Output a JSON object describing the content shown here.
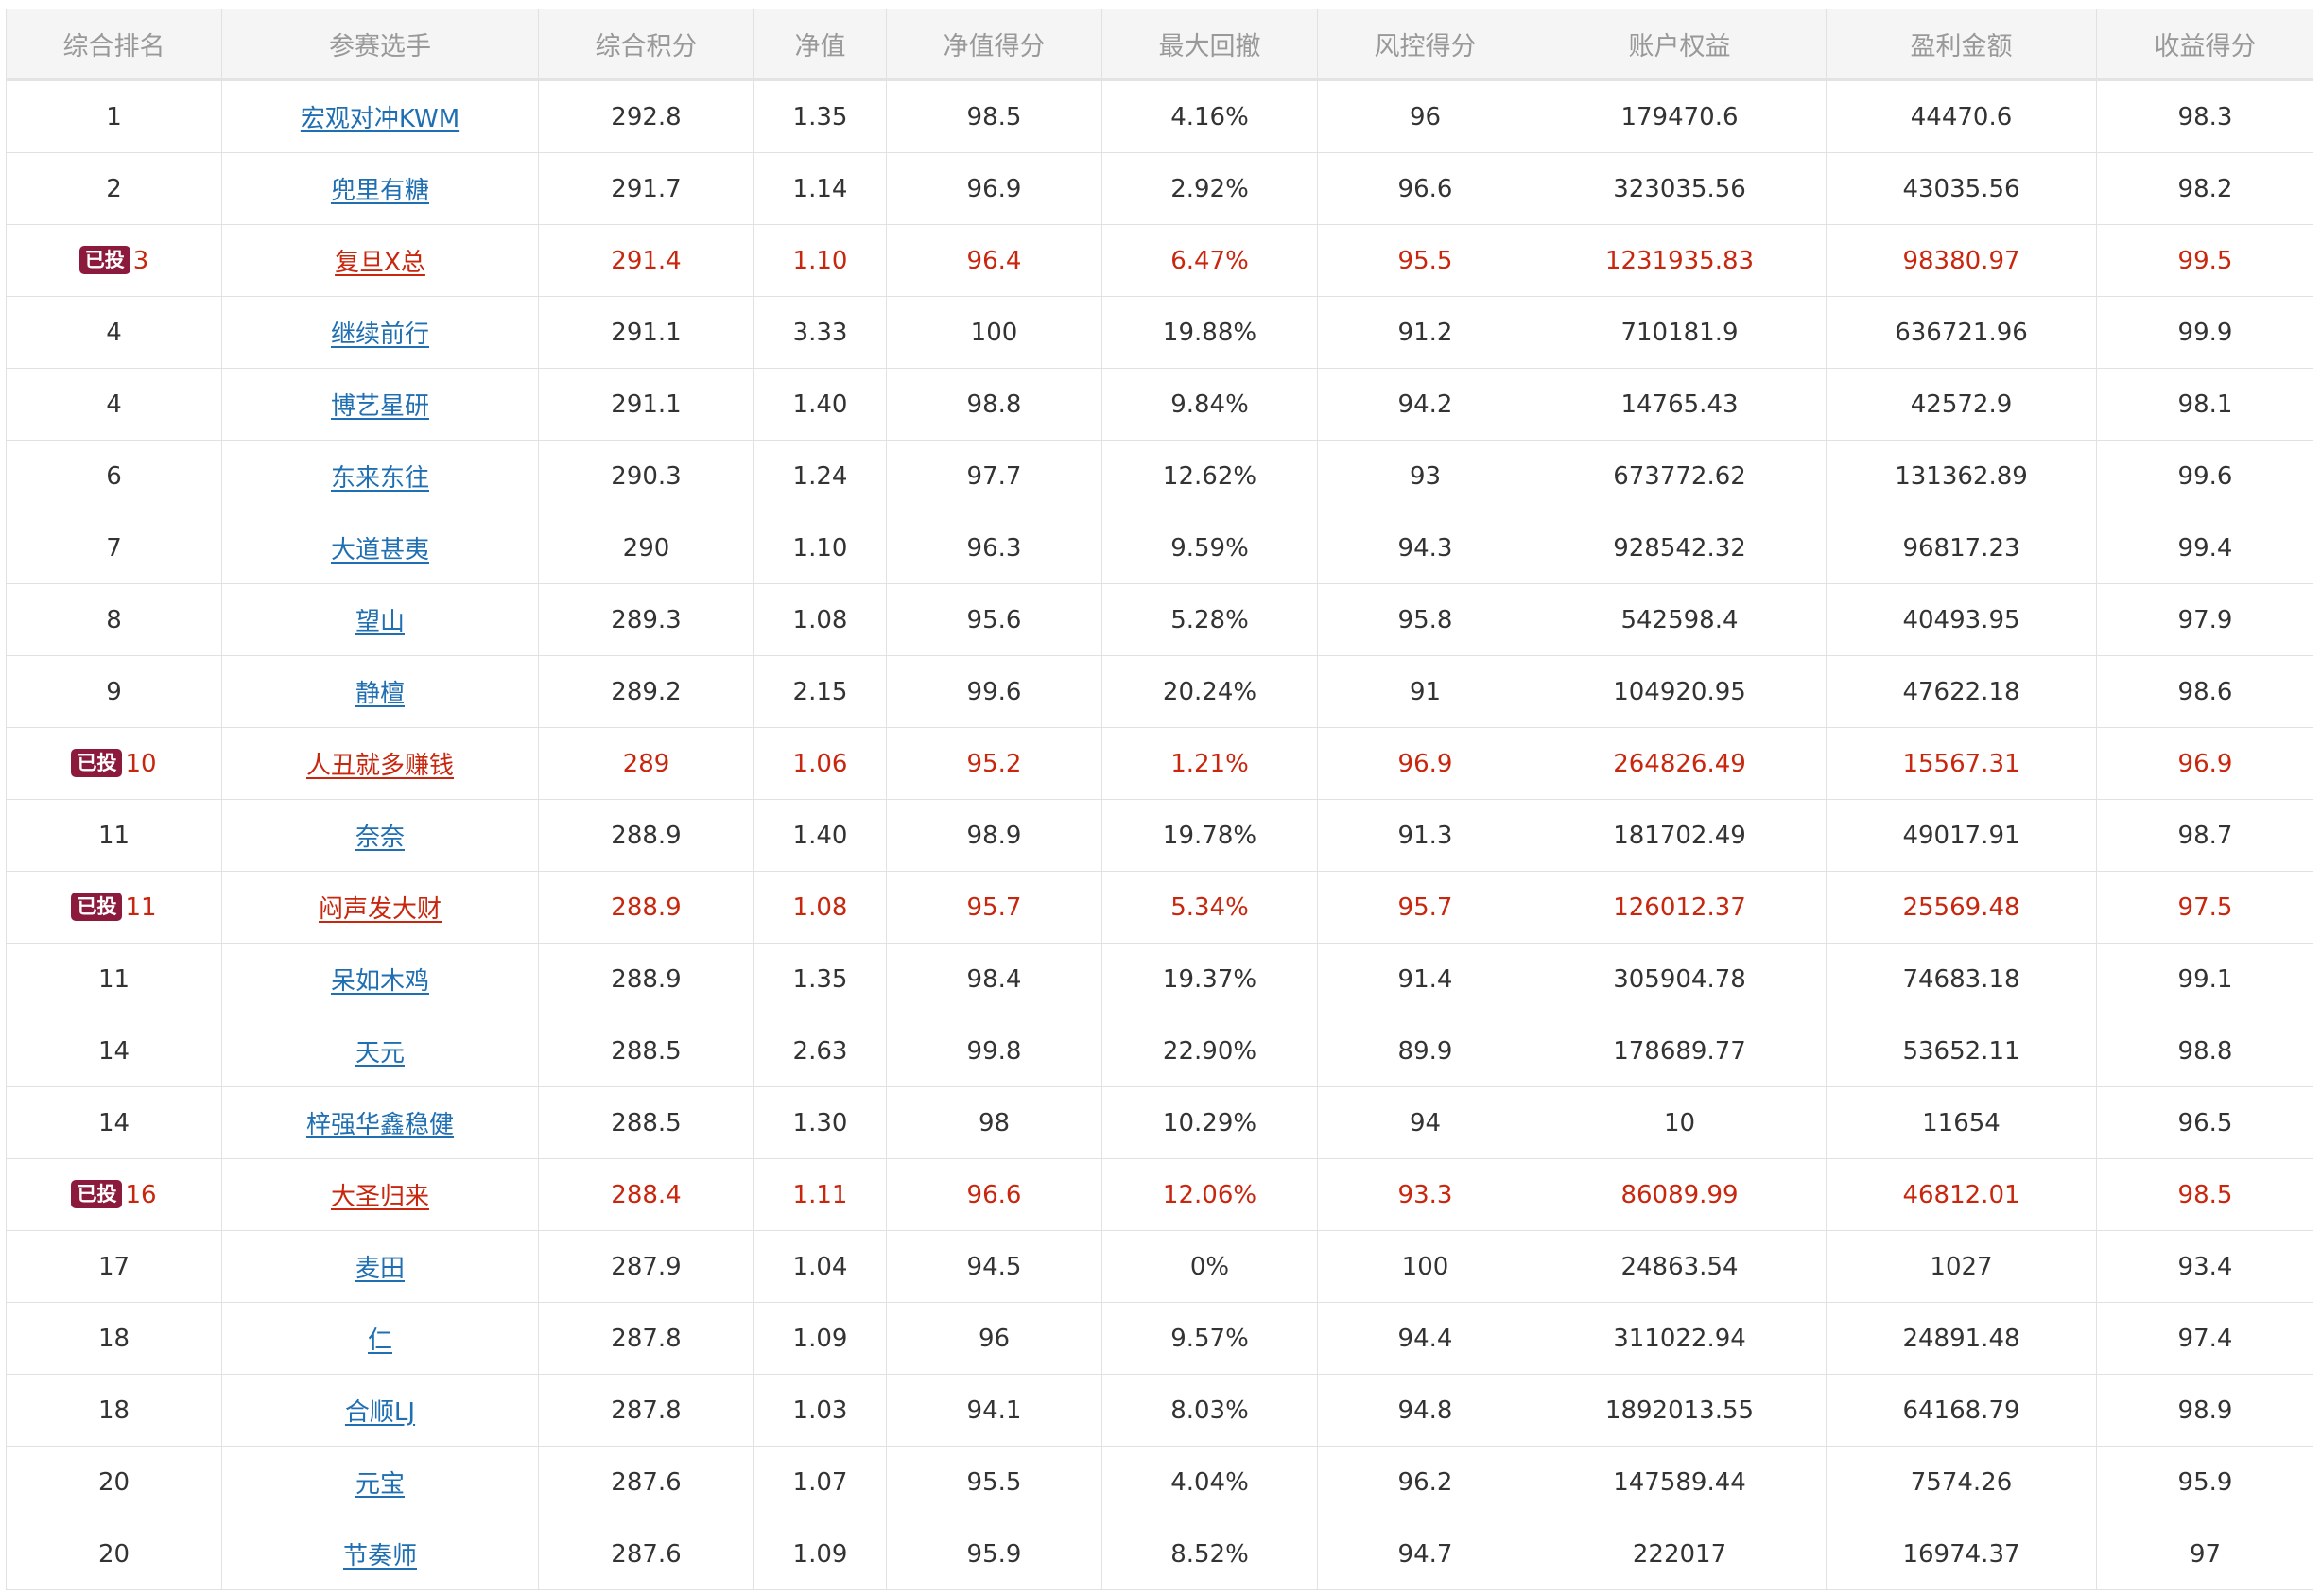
{
  "table": {
    "headers": [
      "综合排名",
      "参赛选手",
      "综合积分",
      "净值",
      "净值得分",
      "最大回撤",
      "风控得分",
      "账户权益",
      "盈利金额",
      "收益得分"
    ],
    "badge_label": "已投",
    "highlight_color": "#c9260e",
    "link_color": "#1f6fb2",
    "rows": [
      {
        "rank": "1",
        "name": "宏观对冲KWM",
        "score": "292.8",
        "nav": "1.35",
        "nav_score": "98.5",
        "drawdown": "4.16%",
        "risk_score": "96",
        "equity": "179470.6",
        "profit": "44470.6",
        "return_score": "98.3",
        "invested": false
      },
      {
        "rank": "2",
        "name": "兜里有糖",
        "score": "291.7",
        "nav": "1.14",
        "nav_score": "96.9",
        "drawdown": "2.92%",
        "risk_score": "96.6",
        "equity": "323035.56",
        "profit": "43035.56",
        "return_score": "98.2",
        "invested": false
      },
      {
        "rank": "3",
        "name": "复旦X总",
        "score": "291.4",
        "nav": "1.10",
        "nav_score": "96.4",
        "drawdown": "6.47%",
        "risk_score": "95.5",
        "equity": "1231935.83",
        "profit": "98380.97",
        "return_score": "99.5",
        "invested": true
      },
      {
        "rank": "4",
        "name": "继续前行",
        "score": "291.1",
        "nav": "3.33",
        "nav_score": "100",
        "drawdown": "19.88%",
        "risk_score": "91.2",
        "equity": "710181.9",
        "profit": "636721.96",
        "return_score": "99.9",
        "invested": false
      },
      {
        "rank": "4",
        "name": "博艺星研",
        "score": "291.1",
        "nav": "1.40",
        "nav_score": "98.8",
        "drawdown": "9.84%",
        "risk_score": "94.2",
        "equity": "14765.43",
        "profit": "42572.9",
        "return_score": "98.1",
        "invested": false
      },
      {
        "rank": "6",
        "name": "东来东往",
        "score": "290.3",
        "nav": "1.24",
        "nav_score": "97.7",
        "drawdown": "12.62%",
        "risk_score": "93",
        "equity": "673772.62",
        "profit": "131362.89",
        "return_score": "99.6",
        "invested": false
      },
      {
        "rank": "7",
        "name": "大道甚夷",
        "score": "290",
        "nav": "1.10",
        "nav_score": "96.3",
        "drawdown": "9.59%",
        "risk_score": "94.3",
        "equity": "928542.32",
        "profit": "96817.23",
        "return_score": "99.4",
        "invested": false
      },
      {
        "rank": "8",
        "name": "望山",
        "score": "289.3",
        "nav": "1.08",
        "nav_score": "95.6",
        "drawdown": "5.28%",
        "risk_score": "95.8",
        "equity": "542598.4",
        "profit": "40493.95",
        "return_score": "97.9",
        "invested": false
      },
      {
        "rank": "9",
        "name": "静檀",
        "score": "289.2",
        "nav": "2.15",
        "nav_score": "99.6",
        "drawdown": "20.24%",
        "risk_score": "91",
        "equity": "104920.95",
        "profit": "47622.18",
        "return_score": "98.6",
        "invested": false
      },
      {
        "rank": "10",
        "name": "人丑就多赚钱",
        "score": "289",
        "nav": "1.06",
        "nav_score": "95.2",
        "drawdown": "1.21%",
        "risk_score": "96.9",
        "equity": "264826.49",
        "profit": "15567.31",
        "return_score": "96.9",
        "invested": true
      },
      {
        "rank": "11",
        "name": "奈奈",
        "score": "288.9",
        "nav": "1.40",
        "nav_score": "98.9",
        "drawdown": "19.78%",
        "risk_score": "91.3",
        "equity": "181702.49",
        "profit": "49017.91",
        "return_score": "98.7",
        "invested": false
      },
      {
        "rank": "11",
        "name": "闷声发大财",
        "score": "288.9",
        "nav": "1.08",
        "nav_score": "95.7",
        "drawdown": "5.34%",
        "risk_score": "95.7",
        "equity": "126012.37",
        "profit": "25569.48",
        "return_score": "97.5",
        "invested": true
      },
      {
        "rank": "11",
        "name": "呆如木鸡",
        "score": "288.9",
        "nav": "1.35",
        "nav_score": "98.4",
        "drawdown": "19.37%",
        "risk_score": "91.4",
        "equity": "305904.78",
        "profit": "74683.18",
        "return_score": "99.1",
        "invested": false
      },
      {
        "rank": "14",
        "name": "天元",
        "score": "288.5",
        "nav": "2.63",
        "nav_score": "99.8",
        "drawdown": "22.90%",
        "risk_score": "89.9",
        "equity": "178689.77",
        "profit": "53652.11",
        "return_score": "98.8",
        "invested": false
      },
      {
        "rank": "14",
        "name": "梓强华鑫稳健",
        "score": "288.5",
        "nav": "1.30",
        "nav_score": "98",
        "drawdown": "10.29%",
        "risk_score": "94",
        "equity": "10",
        "profit": "11654",
        "return_score": "96.5",
        "invested": false
      },
      {
        "rank": "16",
        "name": "大圣归来",
        "score": "288.4",
        "nav": "1.11",
        "nav_score": "96.6",
        "drawdown": "12.06%",
        "risk_score": "93.3",
        "equity": "86089.99",
        "profit": "46812.01",
        "return_score": "98.5",
        "invested": true
      },
      {
        "rank": "17",
        "name": "麦田",
        "score": "287.9",
        "nav": "1.04",
        "nav_score": "94.5",
        "drawdown": "0%",
        "risk_score": "100",
        "equity": "24863.54",
        "profit": "1027",
        "return_score": "93.4",
        "invested": false
      },
      {
        "rank": "18",
        "name": "仁",
        "score": "287.8",
        "nav": "1.09",
        "nav_score": "96",
        "drawdown": "9.57%",
        "risk_score": "94.4",
        "equity": "311022.94",
        "profit": "24891.48",
        "return_score": "97.4",
        "invested": false
      },
      {
        "rank": "18",
        "name": "合顺LJ",
        "score": "287.8",
        "nav": "1.03",
        "nav_score": "94.1",
        "drawdown": "8.03%",
        "risk_score": "94.8",
        "equity": "1892013.55",
        "profit": "64168.79",
        "return_score": "98.9",
        "invested": false
      },
      {
        "rank": "20",
        "name": "元宝",
        "score": "287.6",
        "nav": "1.07",
        "nav_score": "95.5",
        "drawdown": "4.04%",
        "risk_score": "96.2",
        "equity": "147589.44",
        "profit": "7574.26",
        "return_score": "95.9",
        "invested": false
      },
      {
        "rank": "20",
        "name": "节奏师",
        "score": "287.6",
        "nav": "1.09",
        "nav_score": "95.9",
        "drawdown": "8.52%",
        "risk_score": "94.7",
        "equity": "222017",
        "profit": "16974.37",
        "return_score": "97",
        "invested": false
      }
    ]
  }
}
